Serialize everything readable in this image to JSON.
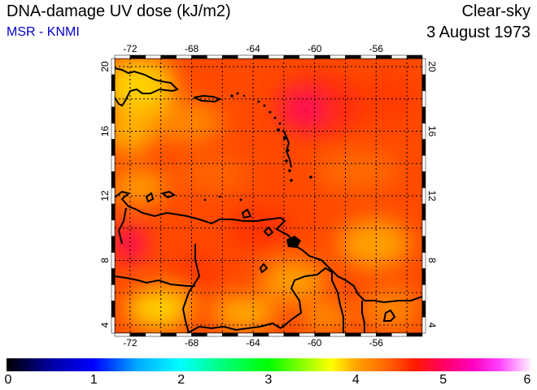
{
  "header": {
    "title": "DNA-damage UV dose (kJ/m2)",
    "source": "MSR - KNMI",
    "sky_condition": "Clear-sky",
    "date": "3 August 1973"
  },
  "map": {
    "lon_range": [
      -73,
      -53
    ],
    "lat_range": [
      3.5,
      20.5
    ],
    "lon_ticks": [
      "-72",
      "-68",
      "-64",
      "-60",
      "-56"
    ],
    "lat_ticks": [
      "4",
      "8",
      "12",
      "16",
      "20"
    ],
    "colors": {
      "frame": "#000000",
      "grid": "#000000",
      "coast": "#000000"
    }
  },
  "colorbar": {
    "labels": [
      "0",
      "1",
      "2",
      "3",
      "4",
      "5",
      "6"
    ],
    "range": [
      0,
      6
    ]
  }
}
